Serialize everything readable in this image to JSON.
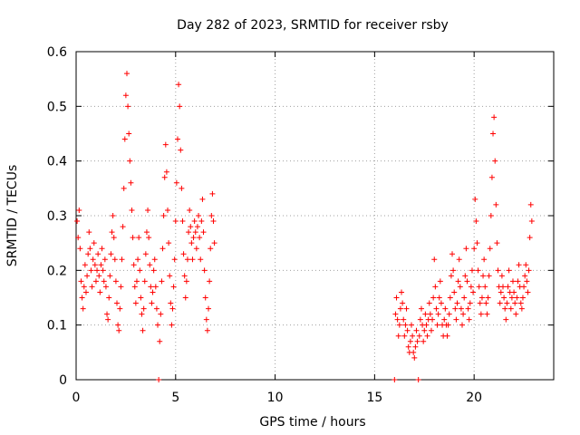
{
  "chart_data": {
    "type": "scatter",
    "title": "Day 282 of 2023, SRMTID for receiver rsby",
    "xlabel": "GPS time / hours",
    "ylabel": "SRMTID / TECUs",
    "xlim": [
      0,
      24
    ],
    "ylim": [
      0,
      0.6
    ],
    "x_ticks": [
      0,
      5,
      10,
      15,
      20
    ],
    "x_tick_labels": [
      "0",
      "5",
      "10",
      "15",
      "20"
    ],
    "y_ticks": [
      0,
      0.1,
      0.2,
      0.3,
      0.4,
      0.5,
      0.6
    ],
    "y_tick_labels": [
      "0",
      "0.1",
      "0.2",
      "0.3",
      "0.4",
      "0.5",
      "0.6"
    ],
    "grid": true,
    "marker": "+",
    "color": "#ff0000",
    "series": [
      {
        "name": "SRMTID",
        "points": [
          [
            0.05,
            0.29
          ],
          [
            0.1,
            0.26
          ],
          [
            0.15,
            0.31
          ],
          [
            0.2,
            0.24
          ],
          [
            0.25,
            0.18
          ],
          [
            0.3,
            0.15
          ],
          [
            0.35,
            0.13
          ],
          [
            0.4,
            0.17
          ],
          [
            0.45,
            0.21
          ],
          [
            0.5,
            0.16
          ],
          [
            0.55,
            0.19
          ],
          [
            0.6,
            0.23
          ],
          [
            0.65,
            0.27
          ],
          [
            0.7,
            0.24
          ],
          [
            0.75,
            0.2
          ],
          [
            0.8,
            0.17
          ],
          [
            0.85,
            0.22
          ],
          [
            0.9,
            0.25
          ],
          [
            0.95,
            0.21
          ],
          [
            1.0,
            0.18
          ],
          [
            1.05,
            0.2
          ],
          [
            1.1,
            0.23
          ],
          [
            1.15,
            0.19
          ],
          [
            1.2,
            0.16
          ],
          [
            1.25,
            0.21
          ],
          [
            1.3,
            0.24
          ],
          [
            1.35,
            0.2
          ],
          [
            1.4,
            0.18
          ],
          [
            1.45,
            0.22
          ],
          [
            1.5,
            0.17
          ],
          [
            1.55,
            0.12
          ],
          [
            1.6,
            0.11
          ],
          [
            1.65,
            0.15
          ],
          [
            1.7,
            0.19
          ],
          [
            1.75,
            0.23
          ],
          [
            1.8,
            0.27
          ],
          [
            1.85,
            0.3
          ],
          [
            1.9,
            0.26
          ],
          [
            1.95,
            0.22
          ],
          [
            2.0,
            0.18
          ],
          [
            2.05,
            0.14
          ],
          [
            2.1,
            0.1
          ],
          [
            2.15,
            0.09
          ],
          [
            2.2,
            0.13
          ],
          [
            2.25,
            0.17
          ],
          [
            2.3,
            0.22
          ],
          [
            2.35,
            0.28
          ],
          [
            2.4,
            0.35
          ],
          [
            2.45,
            0.44
          ],
          [
            2.5,
            0.52
          ],
          [
            2.55,
            0.56
          ],
          [
            2.6,
            0.5
          ],
          [
            2.65,
            0.45
          ],
          [
            2.7,
            0.4
          ],
          [
            2.75,
            0.36
          ],
          [
            2.8,
            0.31
          ],
          [
            2.85,
            0.26
          ],
          [
            2.9,
            0.21
          ],
          [
            2.95,
            0.17
          ],
          [
            3.0,
            0.14
          ],
          [
            3.05,
            0.18
          ],
          [
            3.1,
            0.22
          ],
          [
            3.15,
            0.26
          ],
          [
            3.2,
            0.2
          ],
          [
            3.25,
            0.15
          ],
          [
            3.3,
            0.12
          ],
          [
            3.35,
            0.09
          ],
          [
            3.4,
            0.13
          ],
          [
            3.45,
            0.18
          ],
          [
            3.5,
            0.23
          ],
          [
            3.55,
            0.27
          ],
          [
            3.6,
            0.31
          ],
          [
            3.65,
            0.26
          ],
          [
            3.7,
            0.21
          ],
          [
            3.75,
            0.17
          ],
          [
            3.8,
            0.14
          ],
          [
            3.85,
            0.16
          ],
          [
            3.9,
            0.2
          ],
          [
            3.95,
            0.22
          ],
          [
            4.0,
            0.17
          ],
          [
            4.05,
            0.13
          ],
          [
            4.1,
            0.1
          ],
          [
            4.15,
            0.0
          ],
          [
            4.2,
            0.07
          ],
          [
            4.25,
            0.12
          ],
          [
            4.3,
            0.18
          ],
          [
            4.35,
            0.24
          ],
          [
            4.4,
            0.3
          ],
          [
            4.45,
            0.37
          ],
          [
            4.5,
            0.43
          ],
          [
            4.55,
            0.38
          ],
          [
            4.6,
            0.31
          ],
          [
            4.65,
            0.25
          ],
          [
            4.7,
            0.19
          ],
          [
            4.75,
            0.14
          ],
          [
            4.8,
            0.1
          ],
          [
            4.85,
            0.13
          ],
          [
            4.9,
            0.17
          ],
          [
            4.95,
            0.22
          ],
          [
            5.0,
            0.29
          ],
          [
            5.05,
            0.36
          ],
          [
            5.1,
            0.44
          ],
          [
            5.15,
            0.54
          ],
          [
            5.2,
            0.5
          ],
          [
            5.25,
            0.42
          ],
          [
            5.3,
            0.35
          ],
          [
            5.35,
            0.29
          ],
          [
            5.4,
            0.23
          ],
          [
            5.45,
            0.19
          ],
          [
            5.5,
            0.15
          ],
          [
            5.55,
            0.18
          ],
          [
            5.6,
            0.22
          ],
          [
            5.65,
            0.27
          ],
          [
            5.7,
            0.31
          ],
          [
            5.75,
            0.28
          ],
          [
            5.8,
            0.25
          ],
          [
            5.85,
            0.22
          ],
          [
            5.9,
            0.26
          ],
          [
            5.95,
            0.29
          ],
          [
            6.0,
            0.27
          ],
          [
            6.05,
            0.24
          ],
          [
            6.1,
            0.28
          ],
          [
            6.15,
            0.3
          ],
          [
            6.2,
            0.26
          ],
          [
            6.25,
            0.22
          ],
          [
            6.3,
            0.29
          ],
          [
            6.35,
            0.33
          ],
          [
            6.4,
            0.27
          ],
          [
            6.45,
            0.2
          ],
          [
            6.5,
            0.15
          ],
          [
            6.55,
            0.11
          ],
          [
            6.6,
            0.09
          ],
          [
            6.65,
            0.13
          ],
          [
            6.7,
            0.18
          ],
          [
            6.75,
            0.24
          ],
          [
            6.8,
            0.3
          ],
          [
            6.85,
            0.34
          ],
          [
            6.9,
            0.29
          ],
          [
            6.95,
            0.25
          ],
          [
            16.0,
            0.0
          ],
          [
            16.05,
            0.12
          ],
          [
            16.1,
            0.15
          ],
          [
            16.15,
            0.11
          ],
          [
            16.2,
            0.08
          ],
          [
            16.25,
            0.1
          ],
          [
            16.3,
            0.13
          ],
          [
            16.35,
            0.16
          ],
          [
            16.4,
            0.14
          ],
          [
            16.45,
            0.11
          ],
          [
            16.5,
            0.08
          ],
          [
            16.55,
            0.1
          ],
          [
            16.6,
            0.13
          ],
          [
            16.65,
            0.09
          ],
          [
            16.7,
            0.06
          ],
          [
            16.75,
            0.05
          ],
          [
            16.8,
            0.07
          ],
          [
            16.85,
            0.1
          ],
          [
            16.9,
            0.08
          ],
          [
            16.95,
            0.05
          ],
          [
            17.0,
            0.04
          ],
          [
            17.05,
            0.06
          ],
          [
            17.1,
            0.09
          ],
          [
            17.15,
            0.07
          ],
          [
            17.2,
            0.0
          ],
          [
            17.25,
            0.08
          ],
          [
            17.3,
            0.11
          ],
          [
            17.35,
            0.13
          ],
          [
            17.4,
            0.1
          ],
          [
            17.45,
            0.07
          ],
          [
            17.5,
            0.09
          ],
          [
            17.55,
            0.12
          ],
          [
            17.6,
            0.1
          ],
          [
            17.65,
            0.08
          ],
          [
            17.7,
            0.11
          ],
          [
            17.75,
            0.14
          ],
          [
            17.8,
            0.12
          ],
          [
            17.85,
            0.09
          ],
          [
            17.9,
            0.11
          ],
          [
            17.95,
            0.15
          ],
          [
            18.0,
            0.22
          ],
          [
            18.05,
            0.17
          ],
          [
            18.1,
            0.13
          ],
          [
            18.15,
            0.1
          ],
          [
            18.2,
            0.12
          ],
          [
            18.25,
            0.15
          ],
          [
            18.3,
            0.18
          ],
          [
            18.35,
            0.14
          ],
          [
            18.4,
            0.1
          ],
          [
            18.45,
            0.08
          ],
          [
            18.5,
            0.11
          ],
          [
            18.55,
            0.13
          ],
          [
            18.6,
            0.1
          ],
          [
            18.65,
            0.08
          ],
          [
            18.7,
            0.1
          ],
          [
            18.75,
            0.12
          ],
          [
            18.8,
            0.15
          ],
          [
            18.85,
            0.19
          ],
          [
            18.9,
            0.23
          ],
          [
            18.95,
            0.2
          ],
          [
            19.0,
            0.16
          ],
          [
            19.05,
            0.13
          ],
          [
            19.1,
            0.11
          ],
          [
            19.15,
            0.14
          ],
          [
            19.2,
            0.18
          ],
          [
            19.25,
            0.22
          ],
          [
            19.3,
            0.17
          ],
          [
            19.35,
            0.13
          ],
          [
            19.4,
            0.1
          ],
          [
            19.45,
            0.12
          ],
          [
            19.5,
            0.15
          ],
          [
            19.55,
            0.19
          ],
          [
            19.6,
            0.24
          ],
          [
            19.65,
            0.18
          ],
          [
            19.7,
            0.13
          ],
          [
            19.75,
            0.11
          ],
          [
            19.8,
            0.14
          ],
          [
            19.85,
            0.17
          ],
          [
            19.9,
            0.2
          ],
          [
            19.95,
            0.16
          ],
          [
            20.0,
            0.24
          ],
          [
            20.05,
            0.33
          ],
          [
            20.1,
            0.29
          ],
          [
            20.15,
            0.25
          ],
          [
            20.2,
            0.2
          ],
          [
            20.25,
            0.17
          ],
          [
            20.3,
            0.14
          ],
          [
            20.35,
            0.12
          ],
          [
            20.4,
            0.15
          ],
          [
            20.45,
            0.19
          ],
          [
            20.5,
            0.22
          ],
          [
            20.55,
            0.17
          ],
          [
            20.6,
            0.14
          ],
          [
            20.65,
            0.12
          ],
          [
            20.7,
            0.15
          ],
          [
            20.75,
            0.19
          ],
          [
            20.8,
            0.24
          ],
          [
            20.85,
            0.3
          ],
          [
            20.9,
            0.37
          ],
          [
            20.95,
            0.45
          ],
          [
            21.0,
            0.48
          ],
          [
            21.05,
            0.4
          ],
          [
            21.1,
            0.32
          ],
          [
            21.15,
            0.25
          ],
          [
            21.2,
            0.2
          ],
          [
            21.25,
            0.17
          ],
          [
            21.3,
            0.14
          ],
          [
            21.35,
            0.16
          ],
          [
            21.4,
            0.19
          ],
          [
            21.45,
            0.17
          ],
          [
            21.5,
            0.15
          ],
          [
            21.55,
            0.13
          ],
          [
            21.6,
            0.11
          ],
          [
            21.65,
            0.14
          ],
          [
            21.7,
            0.17
          ],
          [
            21.75,
            0.2
          ],
          [
            21.8,
            0.16
          ],
          [
            21.85,
            0.13
          ],
          [
            21.9,
            0.15
          ],
          [
            21.95,
            0.18
          ],
          [
            22.0,
            0.16
          ],
          [
            22.05,
            0.14
          ],
          [
            22.1,
            0.12
          ],
          [
            22.15,
            0.15
          ],
          [
            22.2,
            0.18
          ],
          [
            22.25,
            0.21
          ],
          [
            22.3,
            0.17
          ],
          [
            22.35,
            0.14
          ],
          [
            22.4,
            0.13
          ],
          [
            22.45,
            0.15
          ],
          [
            22.5,
            0.17
          ],
          [
            22.55,
            0.19
          ],
          [
            22.6,
            0.21
          ],
          [
            22.65,
            0.18
          ],
          [
            22.7,
            0.16
          ],
          [
            22.75,
            0.2
          ],
          [
            22.8,
            0.26
          ],
          [
            22.85,
            0.32
          ],
          [
            22.9,
            0.29
          ]
        ]
      }
    ]
  }
}
